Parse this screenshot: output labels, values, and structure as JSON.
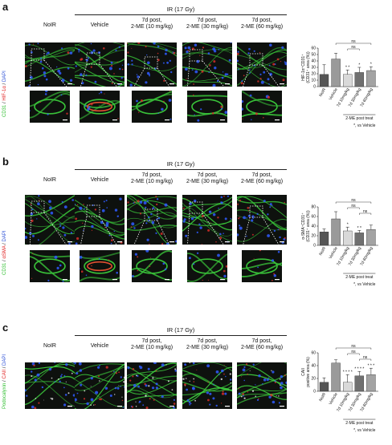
{
  "panels": [
    {
      "id": "a",
      "label": "a",
      "stain_parts": [
        {
          "text": "CD31",
          "color": "#2fbf2f"
        },
        {
          "text": " / ",
          "color": "#111111"
        },
        {
          "text": "HIF-1α",
          "color": "#e02020"
        },
        {
          "text": " / ",
          "color": "#111111"
        },
        {
          "text": "DAPI",
          "color": "#2b4fd6"
        }
      ],
      "ir_label": "IR (17 Gy)",
      "headers": [
        "NoIR",
        "Vehicle",
        "7d post,\n2-ME (10 mg/kg)",
        "7d post,\n2-ME (30 mg/kg)",
        "7d post,\n2-ME (60 mg/kg)"
      ],
      "has_insets": true,
      "chart_data": {
        "type": "bar",
        "categories": [
          "NoIR",
          "Vehicle",
          "7d 10mg/kg",
          "7d 30mg/kg",
          "7d 60mg/kg"
        ],
        "values": [
          19,
          43,
          19,
          22,
          25
        ],
        "errors": [
          15,
          9,
          7,
          8,
          6
        ],
        "bar_colors": [
          "#555555",
          "#9a9a9a",
          "#d9d9d9",
          "#707070",
          "#a3a3a3"
        ],
        "ylabel": "HIF-1α⁺CD31⁺\n(CD31⁺ area (%))",
        "ylim": [
          0,
          60
        ],
        "yticks": [
          0,
          10,
          20,
          30,
          40,
          50,
          60
        ],
        "sig": [
          "",
          "",
          "* *",
          "*",
          "*"
        ],
        "ns_labels": [
          "ns",
          "ns"
        ],
        "group_label": "2-ME post treat",
        "footnote": "*, vs Vehicle"
      }
    },
    {
      "id": "b",
      "label": "b",
      "stain_parts": [
        {
          "text": "CD31",
          "color": "#2fbf2f"
        },
        {
          "text": " / ",
          "color": "#111111"
        },
        {
          "text": "αSMA",
          "color": "#e02020"
        },
        {
          "text": " / ",
          "color": "#111111"
        },
        {
          "text": "DAPI",
          "color": "#2b4fd6"
        }
      ],
      "ir_label": "IR (17 Gy)",
      "headers": [
        "NoIR",
        "Vehicle",
        "7d post,\n2-ME (10 mg/kg)",
        "7d post,\n2-ME (30 mg/kg)",
        "7d post,\n2-ME (60 mg/kg)"
      ],
      "has_insets": true,
      "chart_data": {
        "type": "bar",
        "categories": [
          "NoIR",
          "Vehicle",
          "7d 10mg/kg",
          "7d 30mg/kg",
          "7d 60mg/kg"
        ],
        "values": [
          28,
          55,
          30,
          26,
          33
        ],
        "errors": [
          6,
          15,
          8,
          5,
          9
        ],
        "bar_colors": [
          "#555555",
          "#9a9a9a",
          "#d9d9d9",
          "#707070",
          "#a3a3a3"
        ],
        "ylabel": "α-SMA⁺CD31⁺\n(CD31⁺ area (%))",
        "ylim": [
          0,
          80
        ],
        "yticks": [
          0,
          20,
          40,
          60,
          80
        ],
        "sig": [
          "",
          "",
          "*",
          "* *",
          ""
        ],
        "ns_labels": [
          "ns",
          "ns",
          "ns"
        ],
        "group_label": "2-ME post treat",
        "footnote": "*, vs Vehicle"
      }
    },
    {
      "id": "c",
      "label": "c",
      "stain_parts": [
        {
          "text": "Podocalyxin",
          "color": "#2fbf2f"
        },
        {
          "text": " / ",
          "color": "#111111"
        },
        {
          "text": "CAII",
          "color": "#e02020"
        },
        {
          "text": " / ",
          "color": "#111111"
        },
        {
          "text": "DAPI",
          "color": "#2b4fd6"
        }
      ],
      "ir_label": "IR (17 Gy)",
      "headers": [
        "NoIR",
        "Vehicle",
        "7d post,\n2-ME (10 mg/kg)",
        "7d post,\n2-ME (30 mg/kg)",
        "7d post,\n2-ME (60 mg/kg)"
      ],
      "has_insets": false,
      "chart_data": {
        "type": "bar",
        "categories": [
          "NoIR",
          "Vehicle",
          "7d 10mg/kg",
          "7d 30mg/kg",
          "7d 60mg/kg"
        ],
        "values": [
          14,
          44,
          14,
          24,
          26
        ],
        "errors": [
          7,
          5,
          12,
          7,
          10
        ],
        "bar_colors": [
          "#555555",
          "#9a9a9a",
          "#d9d9d9",
          "#707070",
          "#a3a3a3"
        ],
        "ylabel": "CAII\npositive area (%)",
        "ylim": [
          0,
          60
        ],
        "yticks": [
          0,
          20,
          40,
          60
        ],
        "sig": [
          "",
          "",
          "* * * *",
          "* * * *",
          "* * *"
        ],
        "ns_labels": [
          "ns",
          "ns",
          "ns"
        ],
        "group_label": "2-ME post treat",
        "footnote": "*, vs Vehicle"
      }
    }
  ]
}
